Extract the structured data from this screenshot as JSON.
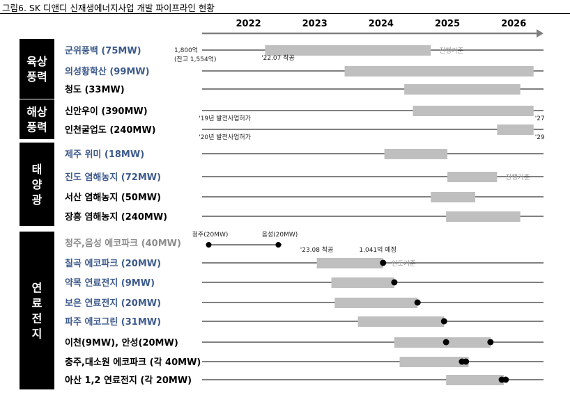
{
  "figure": {
    "title": "그림6. SK 디앤디 신재생에너지사업 개발 파이프라인 현황"
  },
  "chart_data": {
    "type": "gantt",
    "timeline": {
      "years": [
        "2022",
        "2023",
        "2024",
        "2025",
        "2026"
      ],
      "start": 2021.6,
      "end": 2026.75
    },
    "groups": [
      {
        "label": "육상\n풍력",
        "rows": [
          0,
          2
        ]
      },
      {
        "label": "해상\n풍력",
        "rows": [
          3,
          4
        ]
      },
      {
        "label": "태\n양\n광",
        "rows": [
          5,
          8
        ]
      },
      {
        "label": "연\n료\n전\n지",
        "rows": [
          9,
          16
        ]
      }
    ],
    "projects": [
      {
        "name": "군위풍백 (75MW)",
        "color": "#3d5a8c",
        "bar": [
          2022.55,
          2025.05
        ],
        "status": "진행기준",
        "annotations": [
          {
            "text": "1,800억",
            "at": 2021.55,
            "pos": "top-left"
          },
          {
            "text": "(잔고 1,554억)",
            "at": 2021.55,
            "pos": "below-left"
          },
          {
            "text": "'22.07 착공",
            "at": 2022.6,
            "pos": "below"
          }
        ]
      },
      {
        "name": "의성황학산 (99MW)",
        "color": "#3d5a8c",
        "bar": [
          2023.75,
          2026.6
        ]
      },
      {
        "name": "청도 (33MW)",
        "color": "#000000",
        "bar": [
          2024.65,
          2026.4
        ]
      },
      {
        "name": "신안우이 (390MW)",
        "color": "#000000",
        "bar": [
          2024.78,
          2026.6
        ],
        "annotations": [
          {
            "text": "'19년 발전사업허가",
            "at": 2021.55,
            "pos": "below"
          },
          {
            "text": "'27",
            "at": 2026.6,
            "pos": "below-right"
          }
        ]
      },
      {
        "name": "인천굴업도 (240MW)",
        "color": "#000000",
        "bar": [
          2026.05,
          2026.6
        ],
        "annotations": [
          {
            "text": "'20년 발전사업허가",
            "at": 2021.55,
            "pos": "below"
          },
          {
            "text": "'29",
            "at": 2026.6,
            "pos": "below-right"
          }
        ]
      },
      {
        "name": "제주 위미 (18MW)",
        "color": "#3d5a8c",
        "bar": [
          2024.35,
          2025.3
        ]
      },
      {
        "name": "진도 염해농지 (72MW)",
        "color": "#3d5a8c",
        "bar": [
          2025.3,
          2026.05
        ],
        "status": "진행기준"
      },
      {
        "name": "서산 염해농지 (50MW)",
        "color": "#000000",
        "bar": [
          2025.05,
          2025.72
        ]
      },
      {
        "name": "장흥 염해농지 (240MW)",
        "color": "#000000",
        "bar": [
          2025.28,
          2026.4
        ]
      },
      {
        "name": "청주,음성 에코파크 (40MW)",
        "color": "#8c8c8c",
        "line": [
          2021.7,
          2022.8
        ],
        "points": [
          {
            "label": "청주(20MW)",
            "at": 2021.7
          },
          {
            "label": "음성(20MW)",
            "at": 2022.75
          }
        ]
      },
      {
        "name": "칠곡 에코파크 (20MW)",
        "color": "#3d5a8c",
        "bar": [
          2023.33,
          2024.33
        ],
        "dots": [
          2024.33
        ],
        "status": "인도기준",
        "annotations": [
          {
            "text": "'23.08 착공",
            "at": 2023.33,
            "pos": "top"
          },
          {
            "text": "1,041억 예정",
            "at": 2024.25,
            "pos": "top"
          }
        ]
      },
      {
        "name": "약목 연료전지 (9MW)",
        "color": "#3d5a8c",
        "bar": [
          2023.55,
          2024.5
        ],
        "dots": [
          2024.5
        ]
      },
      {
        "name": "보은 연료전지 (20MW)",
        "color": "#3d5a8c",
        "bar": [
          2023.6,
          2024.85
        ],
        "dots": [
          2024.85
        ]
      },
      {
        "name": "파주 에코그린 (31MW)",
        "color": "#3d5a8c",
        "bar": [
          2023.95,
          2025.25
        ],
        "dots": [
          2025.25
        ]
      },
      {
        "name": "이천(9MW), 안성(20MW)",
        "color": "#000000",
        "bar": [
          2024.5,
          2025.95
        ],
        "dots": [
          2025.28,
          2025.95
        ]
      },
      {
        "name": "충주,대소원 에코파크 (각 40MW)",
        "color": "#000000",
        "bar": [
          2024.58,
          2025.62
        ],
        "dots": [
          2025.52,
          2025.58
        ]
      },
      {
        "name": "아산 1,2 연료전지 (각 20MW)",
        "color": "#000000",
        "bar": [
          2025.28,
          2026.15
        ],
        "dots": [
          2026.12,
          2026.18
        ]
      }
    ]
  }
}
